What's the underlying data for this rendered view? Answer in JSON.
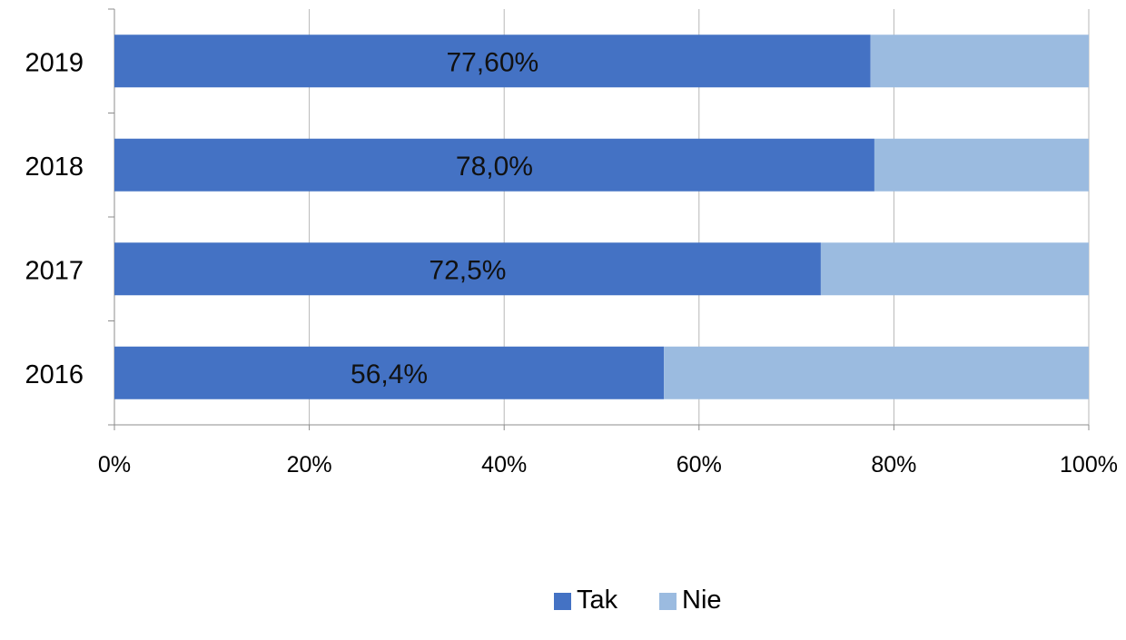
{
  "chart_data": {
    "type": "bar",
    "orientation": "horizontal",
    "stacked": "percent",
    "title": "",
    "xlabel": "",
    "ylabel": "",
    "categories": [
      "2019",
      "2018",
      "2017",
      "2016"
    ],
    "series": [
      {
        "name": "Tak",
        "color": "#4472C4",
        "values": [
          77.6,
          78.0,
          72.5,
          56.4
        ],
        "labels": [
          "77,60%",
          "78,0%",
          "72,5%",
          "56,4%"
        ]
      },
      {
        "name": "Nie",
        "color": "#9BBBE0",
        "values": [
          22.4,
          22.0,
          27.5,
          43.6
        ]
      }
    ],
    "xlim": [
      0,
      100
    ],
    "x_ticks": [
      "0%",
      "20%",
      "40%",
      "60%",
      "80%",
      "100%"
    ],
    "grid": "vertical",
    "legend": "bottom"
  }
}
